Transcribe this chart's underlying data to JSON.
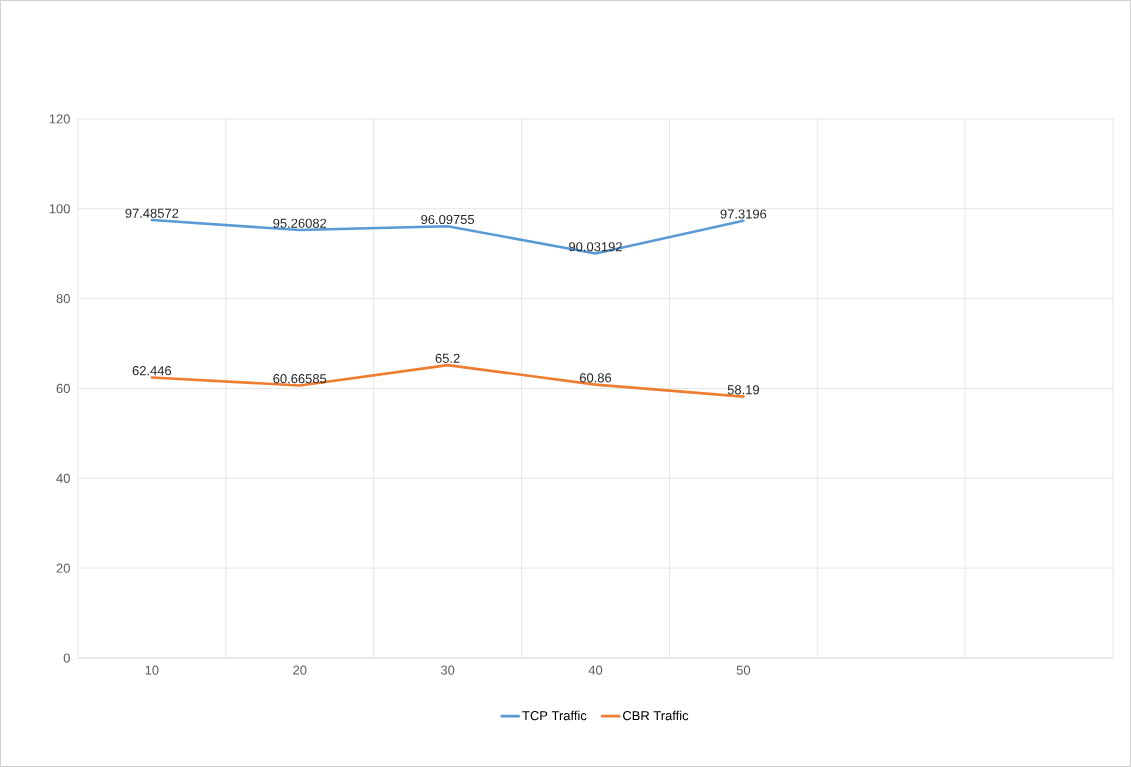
{
  "chart_data": {
    "type": "line",
    "categories": [
      "10",
      "20",
      "30",
      "40",
      "50",
      null,
      null
    ],
    "series": [
      {
        "name": "TCP Traffic",
        "color": "#5b9bd5",
        "values": [
          97.48572,
          95.26082,
          96.09755,
          90.03192,
          97.3196,
          null,
          null
        ]
      },
      {
        "name": "CBR Traffic",
        "color": "#ed7d31",
        "values": [
          62.446,
          60.66585,
          65.2,
          60.86,
          58.19,
          null,
          null
        ]
      }
    ],
    "ylim": [
      0,
      120
    ],
    "yticks": [
      0,
      20,
      40,
      60,
      80,
      100,
      120
    ],
    "grid": true,
    "legend": "bottom",
    "data_labels": true,
    "marker": "none",
    "line_style": "solid"
  }
}
